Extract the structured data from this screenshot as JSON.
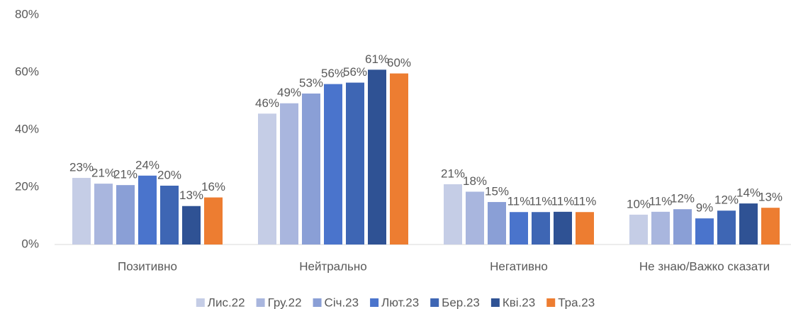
{
  "chart_data": {
    "type": "bar",
    "categories": [
      "Позитивно",
      "Нейтрально",
      "Негативно",
      "Не знаю/Важко сказати"
    ],
    "series": [
      {
        "name": "Лис.22",
        "color": "#c5cde6",
        "values": [
          23.2,
          45.6,
          21.0,
          10.4
        ],
        "value_labels": [
          "23%",
          "46%",
          "21%",
          "10%"
        ]
      },
      {
        "name": "Гру.22",
        "color": "#a9b6de",
        "values": [
          21.2,
          49.2,
          18.4,
          11.4
        ],
        "value_labels": [
          "21%",
          "49%",
          "18%",
          "11%"
        ]
      },
      {
        "name": "Січ.23",
        "color": "#8a9fd6",
        "values": [
          20.7,
          52.6,
          14.8,
          12.3
        ],
        "value_labels": [
          "21%",
          "53%",
          "15%",
          "12%"
        ]
      },
      {
        "name": "Лют.23",
        "color": "#4a74cc",
        "values": [
          24.0,
          55.9,
          11.3,
          9.1
        ],
        "value_labels": [
          "24%",
          "56%",
          "11%",
          "9%"
        ]
      },
      {
        "name": "Бер.23",
        "color": "#3e66b4",
        "values": [
          20.5,
          56.4,
          11.3,
          11.8
        ],
        "value_labels": [
          "20%",
          "56%",
          "11%",
          "12%"
        ]
      },
      {
        "name": "Кві.23",
        "color": "#2f5294",
        "values": [
          13.4,
          60.9,
          11.4,
          14.3
        ],
        "value_labels": [
          "13%",
          "61%",
          "11%",
          "14%"
        ]
      },
      {
        "name": "Тра.23",
        "color": "#ed7d31",
        "values": [
          16.4,
          59.6,
          11.3,
          12.8
        ],
        "value_labels": [
          "16%",
          "60%",
          "11%",
          "13%"
        ]
      }
    ],
    "ylim": [
      0,
      80
    ],
    "yticks": [
      {
        "value": 0,
        "label": "0%"
      },
      {
        "value": 20,
        "label": "20%"
      },
      {
        "value": 40,
        "label": "40%"
      },
      {
        "value": 60,
        "label": "60%"
      },
      {
        "value": 80,
        "label": "80%"
      }
    ],
    "grid": false,
    "legend": "bottom"
  }
}
